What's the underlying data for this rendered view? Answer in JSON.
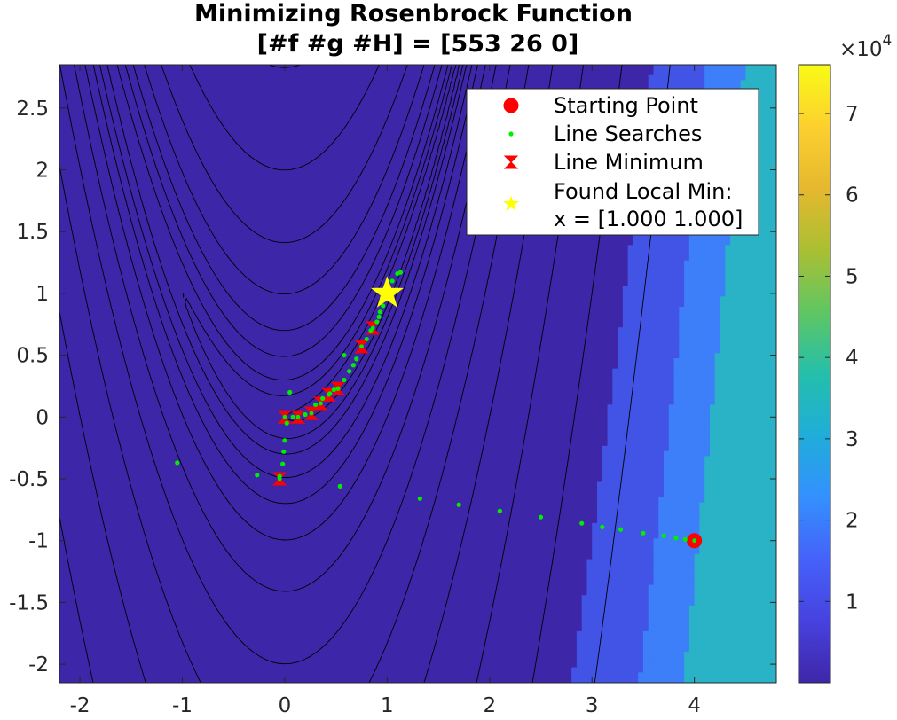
{
  "chart_data": {
    "type": "contour",
    "title": "Minimizing Rosenbrock Function",
    "subtitle": "[#f #g #H] = [553 26 0]",
    "xlabel": "",
    "ylabel": "",
    "xlim": [
      -2.2,
      4.8
    ],
    "ylim": [
      -2.15,
      2.85
    ],
    "x_ticks": [
      "-2",
      "-1",
      "0",
      "1",
      "2",
      "3",
      "4"
    ],
    "y_ticks": [
      "2.5",
      "2",
      "1.5",
      "1",
      "0.5",
      "0",
      "-0.5",
      "-1",
      "-1.5",
      "-2"
    ],
    "contour_levels": [
      1,
      4,
      10,
      25,
      50,
      100,
      200,
      400,
      800,
      1600,
      3200,
      6400,
      12800
    ],
    "filled_bands": [
      {
        "from": 0,
        "to": 10000,
        "color": "#3e26a8"
      },
      {
        "from": 10000,
        "to": 20000,
        "color": "#4254e6"
      },
      {
        "from": 20000,
        "to": 30000,
        "color": "#3d7ff9"
      },
      {
        "from": 30000,
        "to": 40000,
        "color": "#2ab2c7"
      }
    ],
    "colorbar": {
      "ticks": [
        "1",
        "2",
        "3",
        "4",
        "5",
        "6",
        "7"
      ],
      "range": [
        0,
        76000
      ],
      "exponent_label": "×10",
      "exponent_power": "4",
      "colors": [
        "#3e26a8",
        "#4742df",
        "#4562f9",
        "#3490fe",
        "#1fadd9",
        "#24bfab",
        "#5fc662",
        "#abbf33",
        "#e5b82e",
        "#fcd02f",
        "#f9fb15"
      ]
    },
    "series": [
      {
        "name": "Starting Point",
        "marker": "filled-circle",
        "color": "#ff0000",
        "points": [
          [
            4.0,
            -1.0
          ]
        ]
      },
      {
        "name": "Line Searches",
        "marker": "small-dot",
        "color": "#00ee00",
        "points": [
          [
            3.91,
            -0.99
          ],
          [
            3.82,
            -0.98
          ],
          [
            3.7,
            -0.96
          ],
          [
            3.5,
            -0.94
          ],
          [
            3.28,
            -0.91
          ],
          [
            3.1,
            -0.89
          ],
          [
            2.9,
            -0.86
          ],
          [
            2.5,
            -0.81
          ],
          [
            2.1,
            -0.76
          ],
          [
            1.7,
            -0.71
          ],
          [
            1.32,
            -0.66
          ],
          [
            0.54,
            -0.56
          ],
          [
            -0.27,
            -0.47
          ],
          [
            -0.05,
            -0.48
          ],
          [
            -0.02,
            -0.38
          ],
          [
            -0.01,
            -0.28
          ],
          [
            0.0,
            -0.19
          ],
          [
            0.05,
            0.2
          ],
          [
            -1.05,
            -0.37
          ],
          [
            0.02,
            -0.05
          ],
          [
            0.08,
            0.0
          ],
          [
            0.2,
            0.02
          ],
          [
            0.3,
            0.1
          ],
          [
            0.37,
            0.15
          ],
          [
            0.44,
            0.19
          ],
          [
            0.48,
            0.22
          ],
          [
            0.52,
            0.23
          ],
          [
            0.58,
            0.3
          ],
          [
            0.63,
            0.37
          ],
          [
            0.67,
            0.42
          ],
          [
            0.7,
            0.47
          ],
          [
            0.58,
            0.5
          ],
          [
            0.8,
            0.63
          ],
          [
            0.84,
            0.7
          ],
          [
            0.9,
            0.77
          ],
          [
            0.92,
            0.81
          ],
          [
            0.93,
            0.85
          ],
          [
            0.96,
            0.9
          ],
          [
            0.98,
            0.96
          ],
          [
            1.02,
            1.03
          ],
          [
            1.05,
            1.1
          ],
          [
            1.1,
            1.16
          ],
          [
            1.13,
            1.17
          ]
        ]
      },
      {
        "name": "Line Minimum",
        "marker": "bowtie",
        "color": "#ff0000",
        "points": [
          [
            -0.05,
            -0.5
          ],
          [
            0.0,
            0.0
          ],
          [
            0.13,
            0.0
          ],
          [
            0.26,
            0.03
          ],
          [
            0.35,
            0.11
          ],
          [
            0.43,
            0.18
          ],
          [
            0.52,
            0.23
          ],
          [
            0.75,
            0.57
          ],
          [
            0.86,
            0.72
          ]
        ]
      },
      {
        "name": "Found Local Min:",
        "name_line2": "x = [1.000 1.000]",
        "marker": "star",
        "color": "#ffff00",
        "points": [
          [
            1.0,
            1.0
          ]
        ]
      }
    ],
    "legend_position": "top-right"
  }
}
